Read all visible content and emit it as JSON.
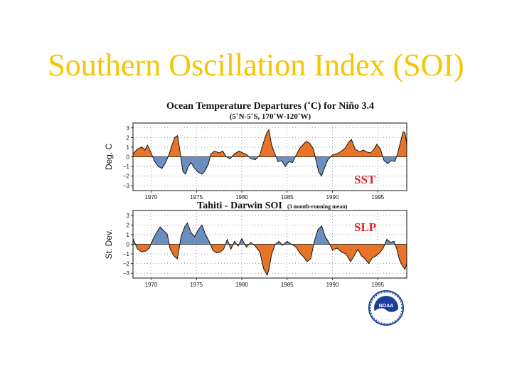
{
  "slide": {
    "title": "Southern Oscillation Index (SOI)"
  },
  "colors": {
    "title": "#f5c600",
    "positive_sst": "#e8742a",
    "negative_sst": "#6b8fc0",
    "label": "#e02020"
  },
  "logo": {
    "name": "noaa-logo",
    "text": "NOAA"
  },
  "chart_data": [
    {
      "type": "area",
      "title": "Ocean Temperature Departures (˚C) for Niño 3.4",
      "subtitle": "(5˚N-5˚S, 170˚W-120˚W)",
      "ylabel": "Deg. C",
      "label": "SST",
      "ylim": [
        -3.5,
        3.5
      ],
      "yticks": [
        "3",
        "2",
        "1",
        "0",
        "−1",
        "−2",
        "−3"
      ],
      "ytick_values": [
        3,
        2,
        1,
        0,
        -1,
        -2,
        -3
      ],
      "xticks": [
        "1970",
        "1975",
        "1980",
        "1985",
        "1990",
        "1995"
      ],
      "xtick_values": [
        1970,
        1975,
        1980,
        1985,
        1990,
        1995
      ],
      "xlim": [
        1968,
        1998.2
      ],
      "grid": true,
      "positive_color": "#e8742a",
      "negative_color": "#6b8fc0",
      "x": [
        1968.0,
        1968.5,
        1969.0,
        1969.3,
        1969.6,
        1970.0,
        1970.4,
        1970.8,
        1971.2,
        1971.6,
        1972.0,
        1972.3,
        1972.6,
        1972.9,
        1973.2,
        1973.5,
        1973.8,
        1974.1,
        1974.4,
        1974.8,
        1975.2,
        1975.6,
        1975.9,
        1976.3,
        1976.6,
        1977.0,
        1977.5,
        1977.9,
        1978.3,
        1978.7,
        1979.2,
        1979.7,
        1980.1,
        1980.6,
        1981.0,
        1981.5,
        1982.0,
        1982.4,
        1982.8,
        1983.0,
        1983.3,
        1983.7,
        1984.0,
        1984.4,
        1984.8,
        1985.2,
        1985.6,
        1986.0,
        1986.4,
        1986.8,
        1987.1,
        1987.5,
        1987.9,
        1988.2,
        1988.5,
        1988.8,
        1989.1,
        1989.5,
        1990.0,
        1990.5,
        1991.0,
        1991.4,
        1991.8,
        1992.1,
        1992.5,
        1993.0,
        1993.4,
        1993.8,
        1994.2,
        1994.6,
        1994.9,
        1995.3,
        1995.7,
        1996.1,
        1996.5,
        1996.9,
        1997.2,
        1997.5,
        1997.8,
        1998.0,
        1998.2
      ],
      "values": [
        0.3,
        0.8,
        1.0,
        0.7,
        1.2,
        0.4,
        -0.5,
        -1.0,
        -1.2,
        -0.6,
        0.3,
        1.2,
        2.0,
        2.2,
        0.5,
        -1.5,
        -1.8,
        -1.0,
        -0.6,
        -1.2,
        -1.6,
        -1.8,
        -1.5,
        -0.8,
        0.3,
        0.6,
        0.4,
        0.6,
        0.0,
        -0.2,
        0.3,
        0.6,
        0.4,
        0.2,
        -0.2,
        -0.3,
        0.2,
        1.5,
        2.6,
        2.8,
        1.2,
        0.2,
        -0.5,
        -0.4,
        -1.0,
        -0.5,
        -0.6,
        0.2,
        0.9,
        1.3,
        1.6,
        1.4,
        0.8,
        -0.4,
        -1.6,
        -2.0,
        -1.2,
        -0.3,
        0.2,
        0.3,
        0.6,
        0.9,
        1.5,
        1.8,
        0.8,
        0.5,
        0.7,
        0.5,
        0.4,
        0.8,
        1.3,
        0.8,
        -0.4,
        -0.7,
        -0.4,
        -0.5,
        0.4,
        1.5,
        2.6,
        2.5,
        1.3
      ]
    },
    {
      "type": "area",
      "title": "Tahiti - Darwin SOI",
      "subtitle": "(3 month-running mean)",
      "ylabel": "St. Dev.",
      "label": "SLP",
      "ylim": [
        -3.5,
        3.5
      ],
      "yticks": [
        "3",
        "2",
        "1",
        "0",
        "−1",
        "−2",
        "−3"
      ],
      "ytick_values": [
        3,
        2,
        1,
        0,
        -1,
        -2,
        -3
      ],
      "xticks": [
        "1970",
        "1975",
        "1980",
        "1985",
        "1990",
        "1995"
      ],
      "xtick_values": [
        1970,
        1975,
        1980,
        1985,
        1990,
        1995
      ],
      "xlim": [
        1968,
        1998.2
      ],
      "grid": true,
      "positive_color": "#6b8fc0",
      "negative_color": "#e8742a",
      "x": [
        1968.0,
        1968.5,
        1969.0,
        1969.4,
        1969.8,
        1970.2,
        1970.6,
        1971.0,
        1971.4,
        1971.8,
        1972.1,
        1972.5,
        1972.9,
        1973.3,
        1973.7,
        1974.0,
        1974.4,
        1974.8,
        1975.2,
        1975.6,
        1976.0,
        1976.4,
        1976.8,
        1977.2,
        1977.6,
        1978.0,
        1978.4,
        1978.8,
        1979.2,
        1979.6,
        1980.0,
        1980.5,
        1981.0,
        1981.5,
        1982.0,
        1982.4,
        1982.8,
        1983.0,
        1983.3,
        1983.7,
        1984.1,
        1984.5,
        1985.0,
        1985.5,
        1986.0,
        1986.4,
        1986.8,
        1987.2,
        1987.6,
        1988.0,
        1988.4,
        1988.8,
        1989.2,
        1989.6,
        1990.0,
        1990.5,
        1991.0,
        1991.5,
        1992.0,
        1992.4,
        1992.8,
        1993.2,
        1993.6,
        1994.0,
        1994.4,
        1994.8,
        1995.2,
        1995.6,
        1996.0,
        1996.4,
        1996.8,
        1997.1,
        1997.4,
        1997.7,
        1998.0,
        1998.2
      ],
      "values": [
        0.6,
        -0.5,
        -0.8,
        -0.7,
        -0.4,
        0.5,
        1.2,
        1.8,
        1.4,
        1.0,
        -0.5,
        -1.2,
        -1.5,
        0.8,
        1.8,
        2.2,
        1.2,
        0.8,
        1.5,
        2.0,
        1.0,
        0.3,
        -0.6,
        -0.9,
        -0.8,
        -0.5,
        0.5,
        -0.5,
        0.3,
        -0.2,
        0.6,
        -0.3,
        0.2,
        -0.2,
        -0.8,
        -2.5,
        -3.2,
        -2.6,
        -1.0,
        0.0,
        0.3,
        -0.1,
        0.3,
        0.0,
        -0.3,
        -0.9,
        -1.3,
        -1.8,
        -1.5,
        0.3,
        1.5,
        1.9,
        0.8,
        0.2,
        -0.6,
        -0.4,
        -0.8,
        -1.0,
        -1.8,
        -1.2,
        -0.5,
        -1.2,
        -1.5,
        -2.0,
        -1.4,
        -1.2,
        -0.9,
        -0.4,
        0.5,
        0.2,
        0.3,
        -0.5,
        -1.6,
        -2.2,
        -2.6,
        -2.0
      ]
    }
  ]
}
